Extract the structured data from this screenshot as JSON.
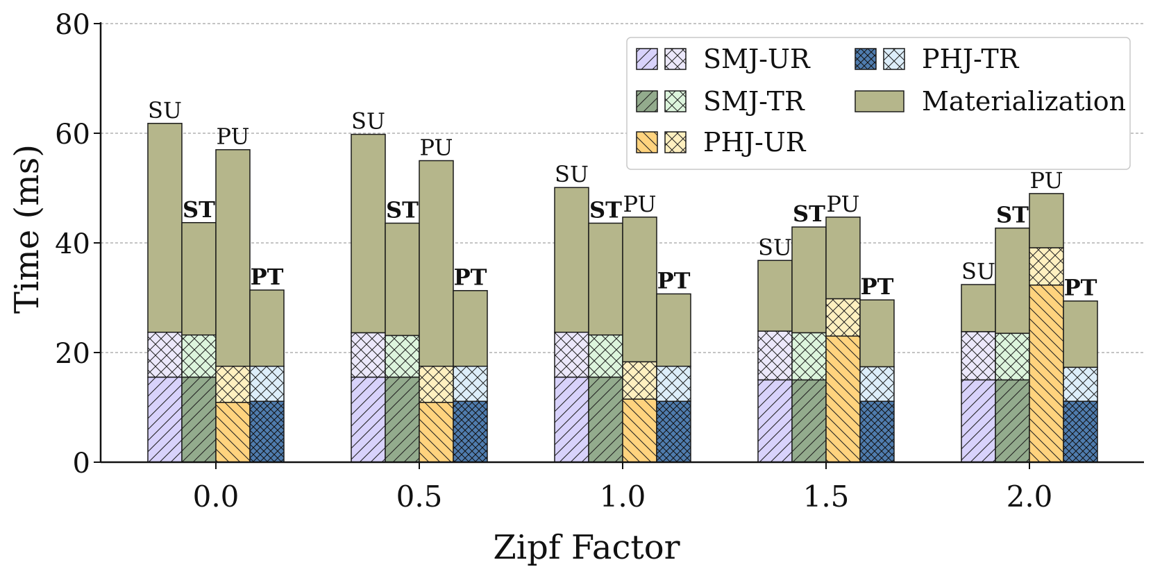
{
  "chart_data": {
    "type": "bar",
    "subtype": "grouped-stacked",
    "xlabel": "Zipf Factor",
    "ylabel": "Time (ms)",
    "ylim": [
      0,
      80
    ],
    "yticks": [
      "0",
      "20",
      "40",
      "60",
      "80"
    ],
    "categories": [
      "0.0",
      "0.5",
      "1.0",
      "1.5",
      "2.0"
    ],
    "grid": "y-dashed",
    "legend_position": "top-right",
    "legend": [
      {
        "label": "SMJ-UR",
        "colors": [
          "#d8d2fb",
          "#ece8fb"
        ],
        "hatches": [
          "diag",
          "cross"
        ]
      },
      {
        "label": "SMJ-TR",
        "colors": [
          "#93ab8d",
          "#ddf5dd"
        ],
        "hatches": [
          "diag",
          "cross"
        ]
      },
      {
        "label": "PHJ-UR",
        "colors": [
          "#ffd37e",
          "#fff0c0"
        ],
        "hatches": [
          "back",
          "cross"
        ]
      },
      {
        "label": "PHJ-TR",
        "colors": [
          "#4f7cae",
          "#ddeefa"
        ],
        "hatches": [
          "both",
          "cross"
        ]
      },
      {
        "label": "Materialization",
        "colors": [
          "#b5b68b"
        ],
        "hatches": [
          "none"
        ]
      }
    ],
    "series": [
      {
        "name": "SU",
        "label": "SU",
        "bold": false,
        "join": [
          15.5,
          15.5,
          15.5,
          15.0,
          15.0
        ],
        "total": [
          23.7,
          23.6,
          23.7,
          23.9,
          23.8
        ],
        "top": [
          61.8,
          59.8,
          50.1,
          36.8,
          32.4
        ],
        "colors": [
          "#d8d2fb",
          "#ece8fb"
        ],
        "hatches": [
          "diag",
          "cross"
        ]
      },
      {
        "name": "ST",
        "label": "ST",
        "bold": true,
        "join": [
          15.5,
          15.5,
          15.5,
          15.0,
          15.0
        ],
        "total": [
          23.2,
          23.1,
          23.2,
          23.6,
          23.5
        ],
        "top": [
          43.7,
          43.6,
          43.6,
          42.9,
          42.7
        ],
        "colors": [
          "#93ab8d",
          "#ddf5dd"
        ],
        "hatches": [
          "diag",
          "cross"
        ]
      },
      {
        "name": "PU",
        "label": "PU",
        "bold": false,
        "join": [
          10.9,
          10.9,
          11.5,
          23.0,
          32.3
        ],
        "total": [
          17.5,
          17.5,
          18.3,
          29.8,
          39.1
        ],
        "top": [
          57.0,
          55.0,
          44.7,
          44.7,
          49.0
        ],
        "colors": [
          "#ffd37e",
          "#fff0c0"
        ],
        "hatches": [
          "back",
          "cross"
        ]
      },
      {
        "name": "PT",
        "label": "PT",
        "bold": true,
        "join": [
          11.1,
          11.1,
          11.1,
          11.1,
          11.1
        ],
        "total": [
          17.5,
          17.5,
          17.5,
          17.4,
          17.3
        ],
        "top": [
          31.4,
          31.3,
          30.7,
          29.6,
          29.4
        ],
        "colors": [
          "#4f7cae",
          "#ddeefa"
        ],
        "hatches": [
          "both",
          "cross"
        ]
      }
    ],
    "materialization_color": "#b5b68b"
  }
}
